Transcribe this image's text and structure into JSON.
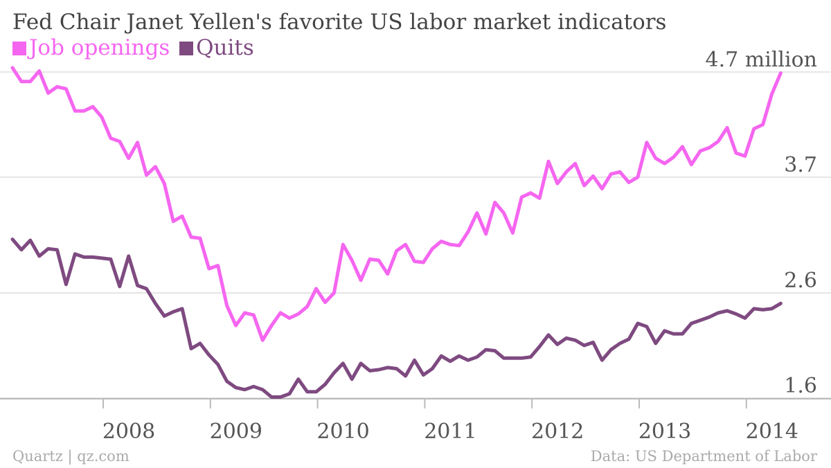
{
  "chart_data": {
    "type": "line",
    "title": "Fed Chair Janet Yellen's favorite US labor market indicators",
    "source": "Data: US Department of Labor",
    "credit": "Quartz | qz.com",
    "y_unit_label": "million",
    "ylim": [
      1.6,
      4.7
    ],
    "y_ticks": [
      {
        "value": 4.7,
        "label": "4.7 million"
      },
      {
        "value": 3.7,
        "label": "3.7"
      },
      {
        "value": 2.6,
        "label": "2.6"
      },
      {
        "value": 1.6,
        "label": "1.6"
      }
    ],
    "x_start": "2007-01",
    "x_ticks": [
      "2008",
      "2009",
      "2010",
      "2011",
      "2012",
      "2013",
      "2014"
    ],
    "grid": true,
    "legend_position": "top-left",
    "series": [
      {
        "name": "Job openings",
        "color": "#f566f0",
        "values": [
          4.74,
          4.61,
          4.61,
          4.71,
          4.5,
          4.56,
          4.54,
          4.33,
          4.33,
          4.37,
          4.27,
          4.07,
          4.04,
          3.88,
          4.03,
          3.72,
          3.8,
          3.64,
          3.28,
          3.33,
          3.13,
          3.12,
          2.83,
          2.86,
          2.48,
          2.29,
          2.41,
          2.39,
          2.15,
          2.29,
          2.41,
          2.36,
          2.4,
          2.47,
          2.64,
          2.51,
          2.6,
          3.06,
          2.91,
          2.72,
          2.92,
          2.91,
          2.78,
          3.0,
          3.06,
          2.9,
          2.89,
          3.02,
          3.09,
          3.06,
          3.05,
          3.18,
          3.36,
          3.16,
          3.46,
          3.36,
          3.17,
          3.51,
          3.55,
          3.5,
          3.85,
          3.64,
          3.75,
          3.83,
          3.62,
          3.71,
          3.59,
          3.73,
          3.75,
          3.65,
          3.7,
          4.03,
          3.88,
          3.83,
          3.89,
          3.99,
          3.82,
          3.95,
          3.98,
          4.04,
          4.17,
          3.93,
          3.9,
          4.16,
          4.2,
          4.49,
          4.69
        ]
      },
      {
        "name": "Quits",
        "color": "#7e4a80",
        "values": [
          3.11,
          3.01,
          3.1,
          2.95,
          3.02,
          3.01,
          2.68,
          2.97,
          2.94,
          2.94,
          2.93,
          2.92,
          2.66,
          2.95,
          2.67,
          2.64,
          2.5,
          2.38,
          2.42,
          2.45,
          2.07,
          2.12,
          2.01,
          1.92,
          1.76,
          1.7,
          1.68,
          1.71,
          1.68,
          1.61,
          1.61,
          1.64,
          1.78,
          1.66,
          1.66,
          1.73,
          1.84,
          1.93,
          1.78,
          1.93,
          1.86,
          1.87,
          1.89,
          1.88,
          1.81,
          1.96,
          1.82,
          1.88,
          2.0,
          1.95,
          2.0,
          1.96,
          1.99,
          2.06,
          2.05,
          1.98,
          1.98,
          1.98,
          1.99,
          2.09,
          2.2,
          2.11,
          2.17,
          2.15,
          2.1,
          2.13,
          1.96,
          2.06,
          2.12,
          2.16,
          2.31,
          2.28,
          2.12,
          2.24,
          2.21,
          2.21,
          2.31,
          2.34,
          2.37,
          2.41,
          2.43,
          2.4,
          2.36,
          2.45,
          2.44,
          2.45,
          2.5
        ]
      }
    ]
  }
}
